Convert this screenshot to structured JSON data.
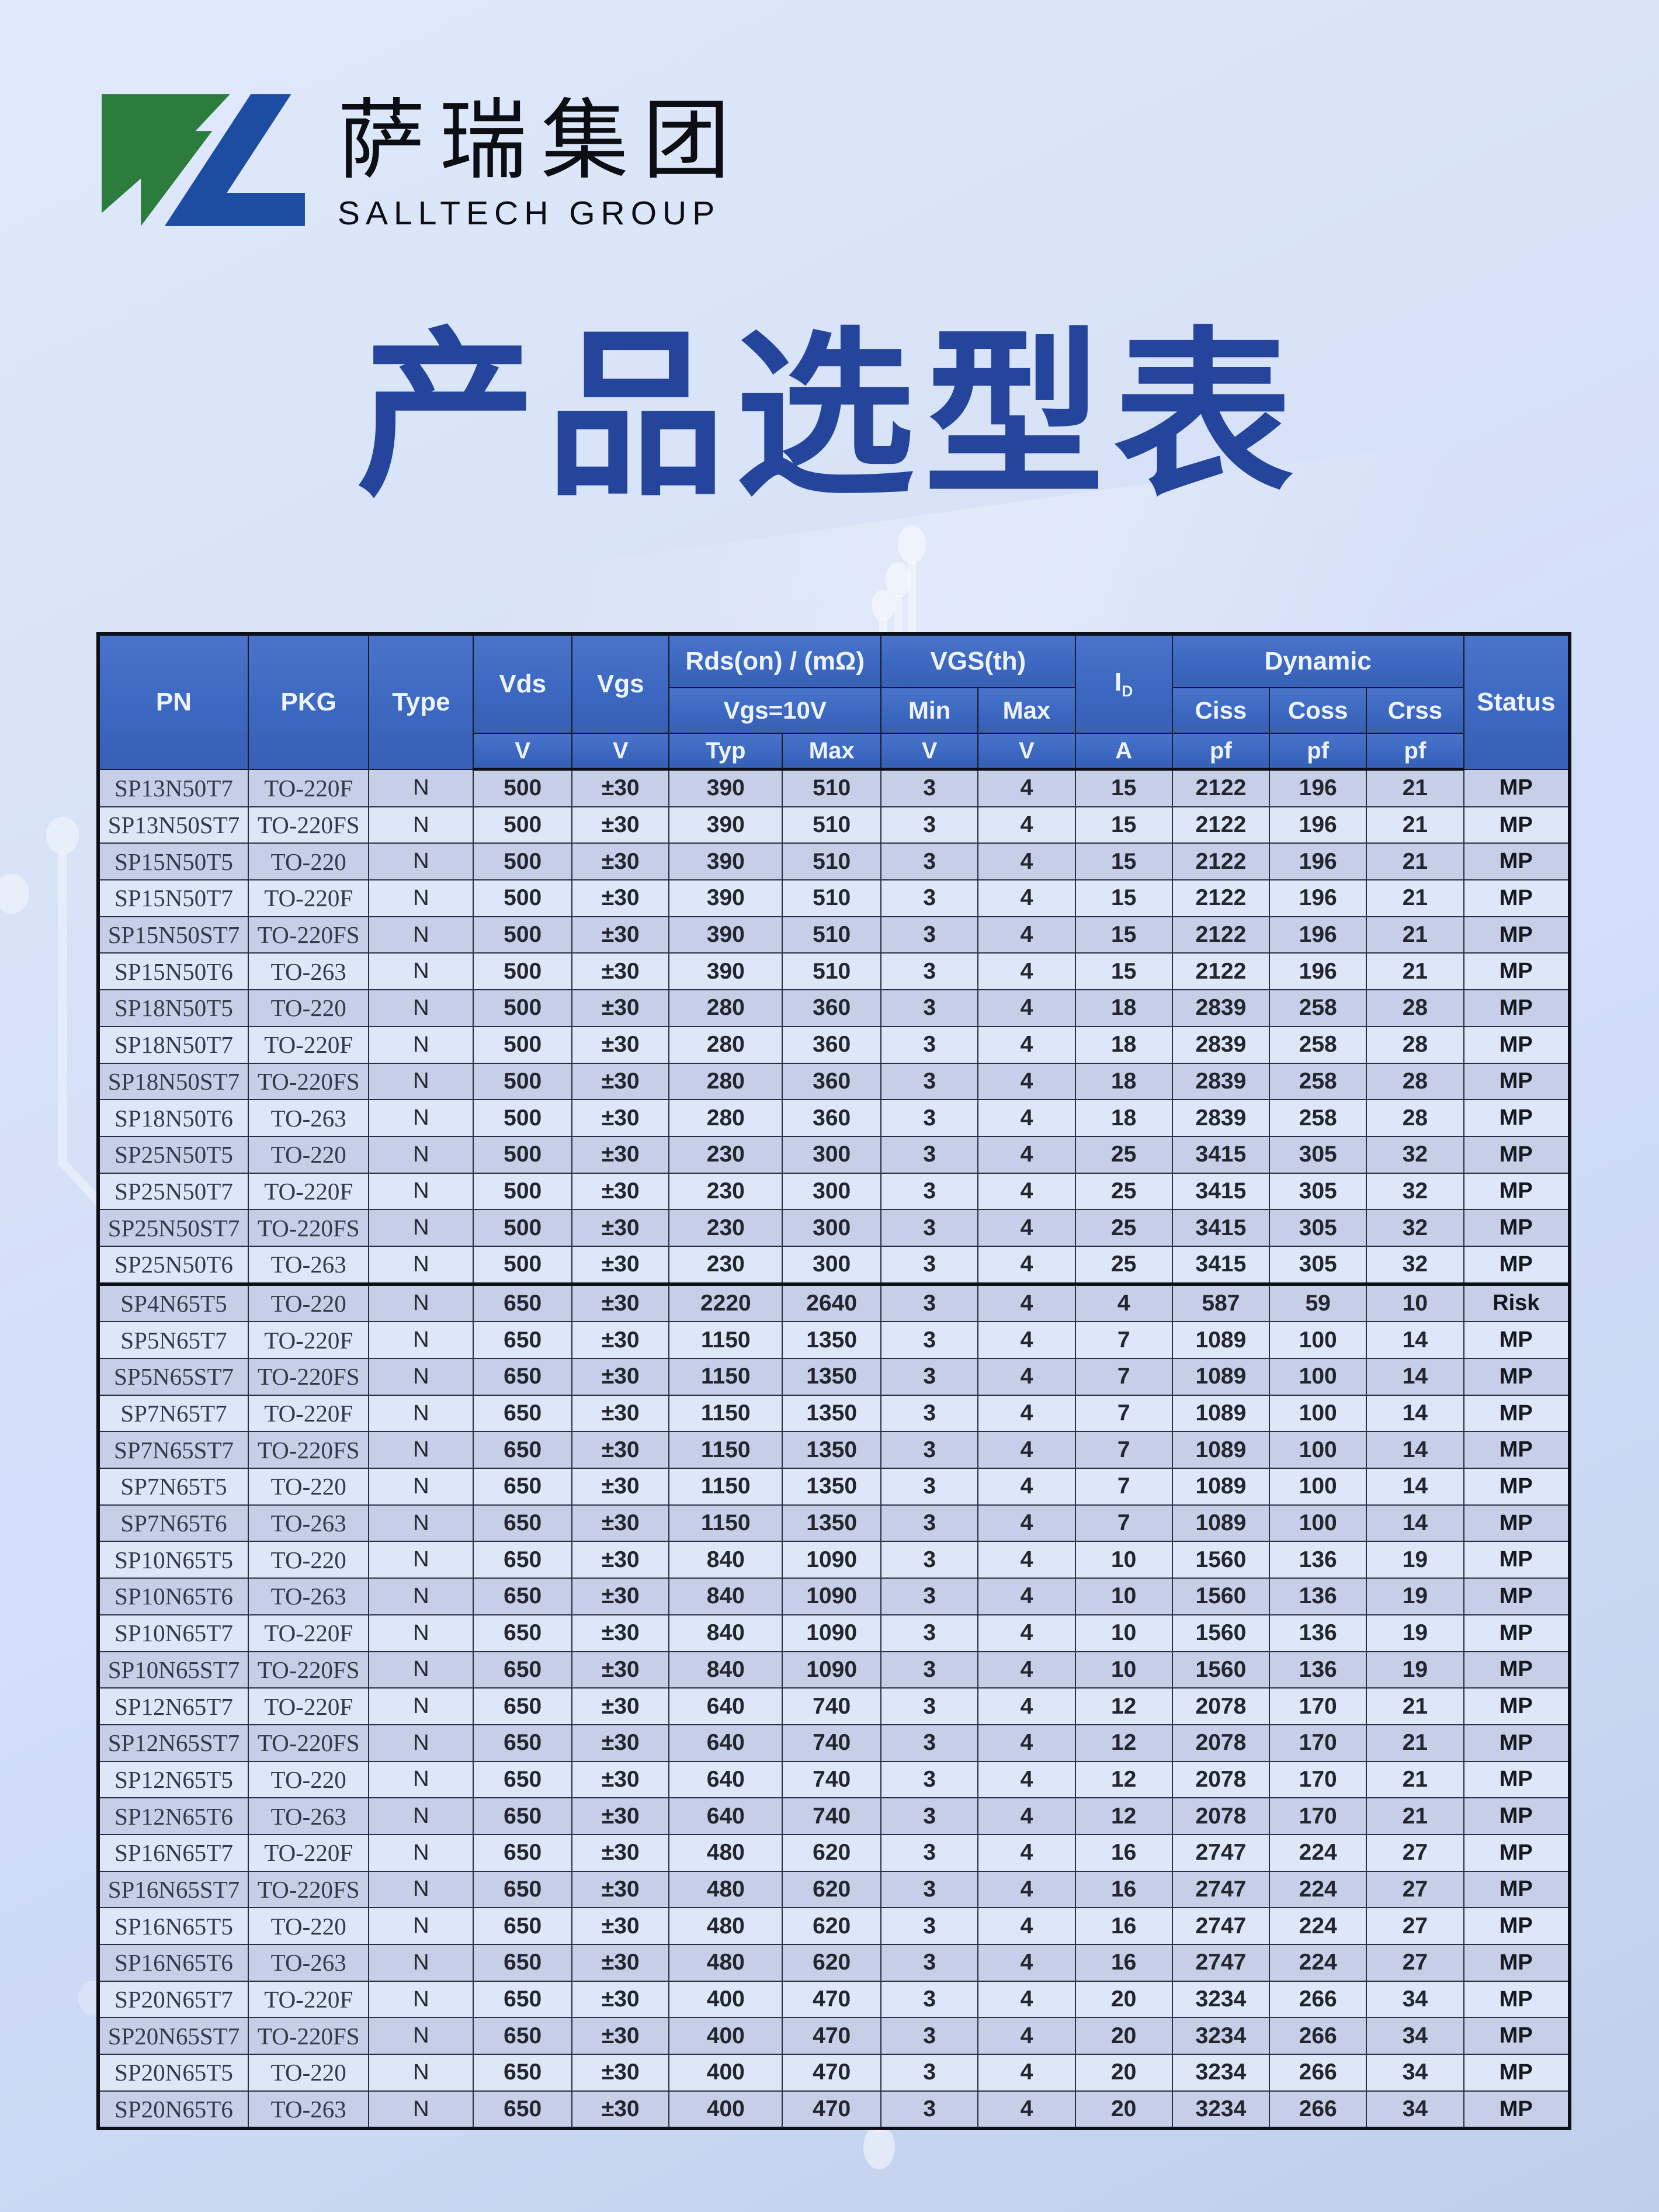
{
  "brand": {
    "name_cn": "萨瑞集团",
    "name_en": "SALLTECH GROUP"
  },
  "title": "产品选型表",
  "colors": {
    "title_color": "#24459b",
    "header_bg": "#3c67c0",
    "row_odd": "#c6cfe7",
    "row_even": "#dde7f8",
    "logo_green": "#2b7c3d",
    "logo_blue": "#1c4da2",
    "status_mp": "MP",
    "status_risk": "Risk"
  },
  "table": {
    "header": {
      "pn": "PN",
      "pkg": "PKG",
      "type": "Type",
      "vds": "Vds",
      "vgs": "Vgs",
      "rdson": "Rds(on) / (mΩ)",
      "rdson_cond": "Vgs=10V",
      "vgsth": "VGS(th)",
      "min": "Min",
      "max": "Max",
      "id_main": "I",
      "id_sub": "D",
      "dynamic": "Dynamic",
      "ciss": "Ciss",
      "coss": "Coss",
      "crss": "Crss",
      "status": "Status",
      "unit_v": "V",
      "unit_a": "A",
      "unit_pf": "pf",
      "typ": "Typ",
      "max2": "Max"
    },
    "col_keys": [
      "pn",
      "pkg",
      "type",
      "vds",
      "vgs",
      "rdson_typ",
      "rdson_max",
      "vgsth_min",
      "vgsth_max",
      "id",
      "ciss",
      "coss",
      "crss",
      "status"
    ],
    "rows": [
      {
        "group": "500V",
        "pn": "SP13N50T7",
        "pkg": "TO-220F",
        "type": "N",
        "vds": "500",
        "vgs": "±30",
        "rdson_typ": "390",
        "rdson_max": "510",
        "vgsth_min": "3",
        "vgsth_max": "4",
        "id": "15",
        "ciss": "2122",
        "coss": "196",
        "crss": "21",
        "status": "MP"
      },
      {
        "group": "500V",
        "pn": "SP13N50ST7",
        "pkg": "TO-220FS",
        "type": "N",
        "vds": "500",
        "vgs": "±30",
        "rdson_typ": "390",
        "rdson_max": "510",
        "vgsth_min": "3",
        "vgsth_max": "4",
        "id": "15",
        "ciss": "2122",
        "coss": "196",
        "crss": "21",
        "status": "MP"
      },
      {
        "group": "500V",
        "pn": "SP15N50T5",
        "pkg": "TO-220",
        "type": "N",
        "vds": "500",
        "vgs": "±30",
        "rdson_typ": "390",
        "rdson_max": "510",
        "vgsth_min": "3",
        "vgsth_max": "4",
        "id": "15",
        "ciss": "2122",
        "coss": "196",
        "crss": "21",
        "status": "MP"
      },
      {
        "group": "500V",
        "pn": "SP15N50T7",
        "pkg": "TO-220F",
        "type": "N",
        "vds": "500",
        "vgs": "±30",
        "rdson_typ": "390",
        "rdson_max": "510",
        "vgsth_min": "3",
        "vgsth_max": "4",
        "id": "15",
        "ciss": "2122",
        "coss": "196",
        "crss": "21",
        "status": "MP"
      },
      {
        "group": "500V",
        "pn": "SP15N50ST7",
        "pkg": "TO-220FS",
        "type": "N",
        "vds": "500",
        "vgs": "±30",
        "rdson_typ": "390",
        "rdson_max": "510",
        "vgsth_min": "3",
        "vgsth_max": "4",
        "id": "15",
        "ciss": "2122",
        "coss": "196",
        "crss": "21",
        "status": "MP"
      },
      {
        "group": "500V",
        "pn": "SP15N50T6",
        "pkg": "TO-263",
        "type": "N",
        "vds": "500",
        "vgs": "±30",
        "rdson_typ": "390",
        "rdson_max": "510",
        "vgsth_min": "3",
        "vgsth_max": "4",
        "id": "15",
        "ciss": "2122",
        "coss": "196",
        "crss": "21",
        "status": "MP"
      },
      {
        "group": "500V",
        "pn": "SP18N50T5",
        "pkg": "TO-220",
        "type": "N",
        "vds": "500",
        "vgs": "±30",
        "rdson_typ": "280",
        "rdson_max": "360",
        "vgsth_min": "3",
        "vgsth_max": "4",
        "id": "18",
        "ciss": "2839",
        "coss": "258",
        "crss": "28",
        "status": "MP"
      },
      {
        "group": "500V",
        "pn": "SP18N50T7",
        "pkg": "TO-220F",
        "type": "N",
        "vds": "500",
        "vgs": "±30",
        "rdson_typ": "280",
        "rdson_max": "360",
        "vgsth_min": "3",
        "vgsth_max": "4",
        "id": "18",
        "ciss": "2839",
        "coss": "258",
        "crss": "28",
        "status": "MP"
      },
      {
        "group": "500V",
        "pn": "SP18N50ST7",
        "pkg": "TO-220FS",
        "type": "N",
        "vds": "500",
        "vgs": "±30",
        "rdson_typ": "280",
        "rdson_max": "360",
        "vgsth_min": "3",
        "vgsth_max": "4",
        "id": "18",
        "ciss": "2839",
        "coss": "258",
        "crss": "28",
        "status": "MP"
      },
      {
        "group": "500V",
        "pn": "SP18N50T6",
        "pkg": "TO-263",
        "type": "N",
        "vds": "500",
        "vgs": "±30",
        "rdson_typ": "280",
        "rdson_max": "360",
        "vgsth_min": "3",
        "vgsth_max": "4",
        "id": "18",
        "ciss": "2839",
        "coss": "258",
        "crss": "28",
        "status": "MP"
      },
      {
        "group": "500V",
        "pn": "SP25N50T5",
        "pkg": "TO-220",
        "type": "N",
        "vds": "500",
        "vgs": "±30",
        "rdson_typ": "230",
        "rdson_max": "300",
        "vgsth_min": "3",
        "vgsth_max": "4",
        "id": "25",
        "ciss": "3415",
        "coss": "305",
        "crss": "32",
        "status": "MP"
      },
      {
        "group": "500V",
        "pn": "SP25N50T7",
        "pkg": "TO-220F",
        "type": "N",
        "vds": "500",
        "vgs": "±30",
        "rdson_typ": "230",
        "rdson_max": "300",
        "vgsth_min": "3",
        "vgsth_max": "4",
        "id": "25",
        "ciss": "3415",
        "coss": "305",
        "crss": "32",
        "status": "MP"
      },
      {
        "group": "500V",
        "pn": "SP25N50ST7",
        "pkg": "TO-220FS",
        "type": "N",
        "vds": "500",
        "vgs": "±30",
        "rdson_typ": "230",
        "rdson_max": "300",
        "vgsth_min": "3",
        "vgsth_max": "4",
        "id": "25",
        "ciss": "3415",
        "coss": "305",
        "crss": "32",
        "status": "MP"
      },
      {
        "group": "500V",
        "pn": "SP25N50T6",
        "pkg": "TO-263",
        "type": "N",
        "vds": "500",
        "vgs": "±30",
        "rdson_typ": "230",
        "rdson_max": "300",
        "vgsth_min": "3",
        "vgsth_max": "4",
        "id": "25",
        "ciss": "3415",
        "coss": "305",
        "crss": "32",
        "status": "MP"
      },
      {
        "group": "650V",
        "pn": "SP4N65T5",
        "pkg": "TO-220",
        "type": "N",
        "vds": "650",
        "vgs": "±30",
        "rdson_typ": "2220",
        "rdson_max": "2640",
        "vgsth_min": "3",
        "vgsth_max": "4",
        "id": "4",
        "ciss": "587",
        "coss": "59",
        "crss": "10",
        "status": "Risk"
      },
      {
        "group": "650V",
        "pn": "SP5N65T7",
        "pkg": "TO-220F",
        "type": "N",
        "vds": "650",
        "vgs": "±30",
        "rdson_typ": "1150",
        "rdson_max": "1350",
        "vgsth_min": "3",
        "vgsth_max": "4",
        "id": "7",
        "ciss": "1089",
        "coss": "100",
        "crss": "14",
        "status": "MP"
      },
      {
        "group": "650V",
        "pn": "SP5N65ST7",
        "pkg": "TO-220FS",
        "type": "N",
        "vds": "650",
        "vgs": "±30",
        "rdson_typ": "1150",
        "rdson_max": "1350",
        "vgsth_min": "3",
        "vgsth_max": "4",
        "id": "7",
        "ciss": "1089",
        "coss": "100",
        "crss": "14",
        "status": "MP"
      },
      {
        "group": "650V",
        "pn": "SP7N65T7",
        "pkg": "TO-220F",
        "type": "N",
        "vds": "650",
        "vgs": "±30",
        "rdson_typ": "1150",
        "rdson_max": "1350",
        "vgsth_min": "3",
        "vgsth_max": "4",
        "id": "7",
        "ciss": "1089",
        "coss": "100",
        "crss": "14",
        "status": "MP"
      },
      {
        "group": "650V",
        "pn": "SP7N65ST7",
        "pkg": "TO-220FS",
        "type": "N",
        "vds": "650",
        "vgs": "±30",
        "rdson_typ": "1150",
        "rdson_max": "1350",
        "vgsth_min": "3",
        "vgsth_max": "4",
        "id": "7",
        "ciss": "1089",
        "coss": "100",
        "crss": "14",
        "status": "MP"
      },
      {
        "group": "650V",
        "pn": "SP7N65T5",
        "pkg": "TO-220",
        "type": "N",
        "vds": "650",
        "vgs": "±30",
        "rdson_typ": "1150",
        "rdson_max": "1350",
        "vgsth_min": "3",
        "vgsth_max": "4",
        "id": "7",
        "ciss": "1089",
        "coss": "100",
        "crss": "14",
        "status": "MP"
      },
      {
        "group": "650V",
        "pn": "SP7N65T6",
        "pkg": "TO-263",
        "type": "N",
        "vds": "650",
        "vgs": "±30",
        "rdson_typ": "1150",
        "rdson_max": "1350",
        "vgsth_min": "3",
        "vgsth_max": "4",
        "id": "7",
        "ciss": "1089",
        "coss": "100",
        "crss": "14",
        "status": "MP"
      },
      {
        "group": "650V",
        "pn": "SP10N65T5",
        "pkg": "TO-220",
        "type": "N",
        "vds": "650",
        "vgs": "±30",
        "rdson_typ": "840",
        "rdson_max": "1090",
        "vgsth_min": "3",
        "vgsth_max": "4",
        "id": "10",
        "ciss": "1560",
        "coss": "136",
        "crss": "19",
        "status": "MP"
      },
      {
        "group": "650V",
        "pn": "SP10N65T6",
        "pkg": "TO-263",
        "type": "N",
        "vds": "650",
        "vgs": "±30",
        "rdson_typ": "840",
        "rdson_max": "1090",
        "vgsth_min": "3",
        "vgsth_max": "4",
        "id": "10",
        "ciss": "1560",
        "coss": "136",
        "crss": "19",
        "status": "MP"
      },
      {
        "group": "650V",
        "pn": "SP10N65T7",
        "pkg": "TO-220F",
        "type": "N",
        "vds": "650",
        "vgs": "±30",
        "rdson_typ": "840",
        "rdson_max": "1090",
        "vgsth_min": "3",
        "vgsth_max": "4",
        "id": "10",
        "ciss": "1560",
        "coss": "136",
        "crss": "19",
        "status": "MP"
      },
      {
        "group": "650V",
        "pn": "SP10N65ST7",
        "pkg": "TO-220FS",
        "type": "N",
        "vds": "650",
        "vgs": "±30",
        "rdson_typ": "840",
        "rdson_max": "1090",
        "vgsth_min": "3",
        "vgsth_max": "4",
        "id": "10",
        "ciss": "1560",
        "coss": "136",
        "crss": "19",
        "status": "MP"
      },
      {
        "group": "650V",
        "pn": "SP12N65T7",
        "pkg": "TO-220F",
        "type": "N",
        "vds": "650",
        "vgs": "±30",
        "rdson_typ": "640",
        "rdson_max": "740",
        "vgsth_min": "3",
        "vgsth_max": "4",
        "id": "12",
        "ciss": "2078",
        "coss": "170",
        "crss": "21",
        "status": "MP"
      },
      {
        "group": "650V",
        "pn": "SP12N65ST7",
        "pkg": "TO-220FS",
        "type": "N",
        "vds": "650",
        "vgs": "±30",
        "rdson_typ": "640",
        "rdson_max": "740",
        "vgsth_min": "3",
        "vgsth_max": "4",
        "id": "12",
        "ciss": "2078",
        "coss": "170",
        "crss": "21",
        "status": "MP"
      },
      {
        "group": "650V",
        "pn": "SP12N65T5",
        "pkg": "TO-220",
        "type": "N",
        "vds": "650",
        "vgs": "±30",
        "rdson_typ": "640",
        "rdson_max": "740",
        "vgsth_min": "3",
        "vgsth_max": "4",
        "id": "12",
        "ciss": "2078",
        "coss": "170",
        "crss": "21",
        "status": "MP"
      },
      {
        "group": "650V",
        "pn": "SP12N65T6",
        "pkg": "TO-263",
        "type": "N",
        "vds": "650",
        "vgs": "±30",
        "rdson_typ": "640",
        "rdson_max": "740",
        "vgsth_min": "3",
        "vgsth_max": "4",
        "id": "12",
        "ciss": "2078",
        "coss": "170",
        "crss": "21",
        "status": "MP"
      },
      {
        "group": "650V",
        "pn": "SP16N65T7",
        "pkg": "TO-220F",
        "type": "N",
        "vds": "650",
        "vgs": "±30",
        "rdson_typ": "480",
        "rdson_max": "620",
        "vgsth_min": "3",
        "vgsth_max": "4",
        "id": "16",
        "ciss": "2747",
        "coss": "224",
        "crss": "27",
        "status": "MP"
      },
      {
        "group": "650V",
        "pn": "SP16N65ST7",
        "pkg": "TO-220FS",
        "type": "N",
        "vds": "650",
        "vgs": "±30",
        "rdson_typ": "480",
        "rdson_max": "620",
        "vgsth_min": "3",
        "vgsth_max": "4",
        "id": "16",
        "ciss": "2747",
        "coss": "224",
        "crss": "27",
        "status": "MP"
      },
      {
        "group": "650V",
        "pn": "SP16N65T5",
        "pkg": "TO-220",
        "type": "N",
        "vds": "650",
        "vgs": "±30",
        "rdson_typ": "480",
        "rdson_max": "620",
        "vgsth_min": "3",
        "vgsth_max": "4",
        "id": "16",
        "ciss": "2747",
        "coss": "224",
        "crss": "27",
        "status": "MP"
      },
      {
        "group": "650V",
        "pn": "SP16N65T6",
        "pkg": "TO-263",
        "type": "N",
        "vds": "650",
        "vgs": "±30",
        "rdson_typ": "480",
        "rdson_max": "620",
        "vgsth_min": "3",
        "vgsth_max": "4",
        "id": "16",
        "ciss": "2747",
        "coss": "224",
        "crss": "27",
        "status": "MP"
      },
      {
        "group": "650V",
        "pn": "SP20N65T7",
        "pkg": "TO-220F",
        "type": "N",
        "vds": "650",
        "vgs": "±30",
        "rdson_typ": "400",
        "rdson_max": "470",
        "vgsth_min": "3",
        "vgsth_max": "4",
        "id": "20",
        "ciss": "3234",
        "coss": "266",
        "crss": "34",
        "status": "MP"
      },
      {
        "group": "650V",
        "pn": "SP20N65ST7",
        "pkg": "TO-220FS",
        "type": "N",
        "vds": "650",
        "vgs": "±30",
        "rdson_typ": "400",
        "rdson_max": "470",
        "vgsth_min": "3",
        "vgsth_max": "4",
        "id": "20",
        "ciss": "3234",
        "coss": "266",
        "crss": "34",
        "status": "MP"
      },
      {
        "group": "650V",
        "pn": "SP20N65T5",
        "pkg": "TO-220",
        "type": "N",
        "vds": "650",
        "vgs": "±30",
        "rdson_typ": "400",
        "rdson_max": "470",
        "vgsth_min": "3",
        "vgsth_max": "4",
        "id": "20",
        "ciss": "3234",
        "coss": "266",
        "crss": "34",
        "status": "MP"
      },
      {
        "group": "650V",
        "pn": "SP20N65T6",
        "pkg": "TO-263",
        "type": "N",
        "vds": "650",
        "vgs": "±30",
        "rdson_typ": "400",
        "rdson_max": "470",
        "vgsth_min": "3",
        "vgsth_max": "4",
        "id": "20",
        "ciss": "3234",
        "coss": "266",
        "crss": "34",
        "status": "MP"
      }
    ]
  }
}
